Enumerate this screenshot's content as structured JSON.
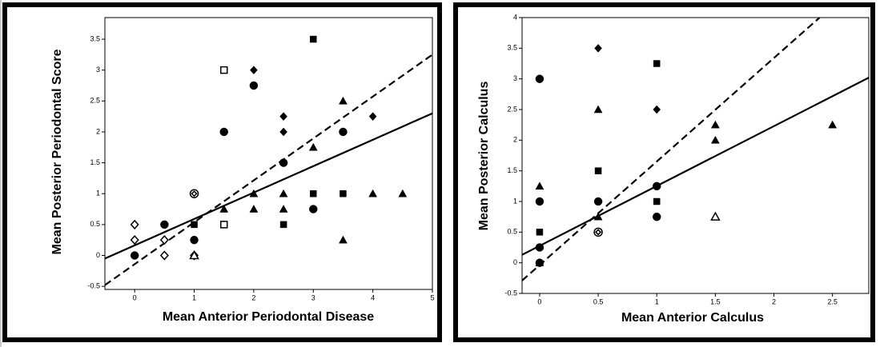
{
  "chart_data": [
    {
      "type": "scatter",
      "xlabel": "Mean Anterior Periodontal Disease",
      "ylabel": "Mean Posterior Periodontal Score",
      "xlim": [
        -0.5,
        5
      ],
      "ylim": [
        -0.55,
        3.85
      ],
      "xticks": [
        0,
        1,
        2,
        3,
        4,
        5
      ],
      "yticks": [
        -0.5,
        0,
        0.5,
        1,
        1.5,
        2,
        2.5,
        3,
        3.5
      ],
      "series": [
        {
          "marker": "circle",
          "filled": true,
          "x": [
            0,
            0.5,
            1,
            1.5,
            2,
            2.5,
            3,
            3.5
          ],
          "y": [
            0,
            0.5,
            0.25,
            2,
            2.75,
            1.5,
            0.75,
            2
          ]
        },
        {
          "marker": "square",
          "filled": true,
          "x": [
            1,
            2.5,
            3,
            3,
            3.5
          ],
          "y": [
            0.5,
            0.5,
            3.5,
            1,
            1
          ]
        },
        {
          "marker": "diamond",
          "filled": true,
          "x": [
            2,
            2.5,
            2.5,
            4
          ],
          "y": [
            3,
            2.25,
            2,
            2.25
          ]
        },
        {
          "marker": "triangle",
          "filled": true,
          "x": [
            1.5,
            2,
            2,
            2.5,
            2.5,
            3,
            3.5,
            3.5,
            4,
            4.5
          ],
          "y": [
            0.75,
            1,
            0.75,
            1,
            0.75,
            1.75,
            2.5,
            0.25,
            1,
            1
          ]
        },
        {
          "marker": "diamond",
          "filled": false,
          "x": [
            0,
            0,
            0.5,
            0.5,
            1
          ],
          "y": [
            0.5,
            0.25,
            0.25,
            0,
            0
          ]
        },
        {
          "marker": "square",
          "filled": false,
          "x": [
            1.5,
            1.5
          ],
          "y": [
            3,
            0.5
          ]
        },
        {
          "marker": "triangle",
          "filled": false,
          "x": [
            1
          ],
          "y": [
            0
          ]
        },
        {
          "marker": "circle-diamond",
          "filled": false,
          "x": [
            1
          ],
          "y": [
            1
          ]
        }
      ],
      "lines": [
        {
          "style": "solid",
          "x": [
            -0.5,
            5
          ],
          "y": [
            -0.05,
            2.3
          ]
        },
        {
          "style": "dashed",
          "x": [
            -0.5,
            5
          ],
          "y": [
            -0.48,
            3.25
          ]
        }
      ]
    },
    {
      "type": "scatter",
      "xlabel": "Mean Anterior Calculus",
      "ylabel": "Mean Posterior Calculus",
      "xlim": [
        -0.15,
        2.81
      ],
      "ylim": [
        -0.5,
        4
      ],
      "xticks": [
        0,
        0.5,
        1,
        1.5,
        2,
        2.5
      ],
      "yticks": [
        -0.5,
        0,
        0.5,
        1,
        1.5,
        2,
        2.5,
        3,
        3.5,
        4
      ],
      "series": [
        {
          "marker": "circle",
          "filled": true,
          "x": [
            0,
            0,
            0,
            0,
            0.5,
            1,
            1
          ],
          "y": [
            3,
            1,
            0.25,
            0,
            1,
            1.25,
            0.75
          ]
        },
        {
          "marker": "square",
          "filled": true,
          "x": [
            0,
            0.5,
            1,
            1
          ],
          "y": [
            0.5,
            1.5,
            3.25,
            1
          ]
        },
        {
          "marker": "diamond",
          "filled": true,
          "x": [
            0.5,
            1
          ],
          "y": [
            3.5,
            2.5
          ]
        },
        {
          "marker": "triangle",
          "filled": true,
          "x": [
            0,
            0,
            0.5,
            0.5,
            1.5,
            1.5,
            2.5
          ],
          "y": [
            1.25,
            0,
            2.5,
            0.75,
            2.25,
            2,
            2.25
          ]
        },
        {
          "marker": "triangle",
          "filled": false,
          "x": [
            1.5
          ],
          "y": [
            0.75
          ]
        },
        {
          "marker": "circle-diamond",
          "filled": false,
          "x": [
            0.5
          ],
          "y": [
            0.5
          ]
        }
      ],
      "lines": [
        {
          "style": "solid",
          "x": [
            -0.15,
            2.81
          ],
          "y": [
            0.13,
            3.02
          ]
        },
        {
          "style": "dashed",
          "x": [
            -0.15,
            2.39
          ],
          "y": [
            -0.29,
            4
          ]
        }
      ]
    }
  ]
}
